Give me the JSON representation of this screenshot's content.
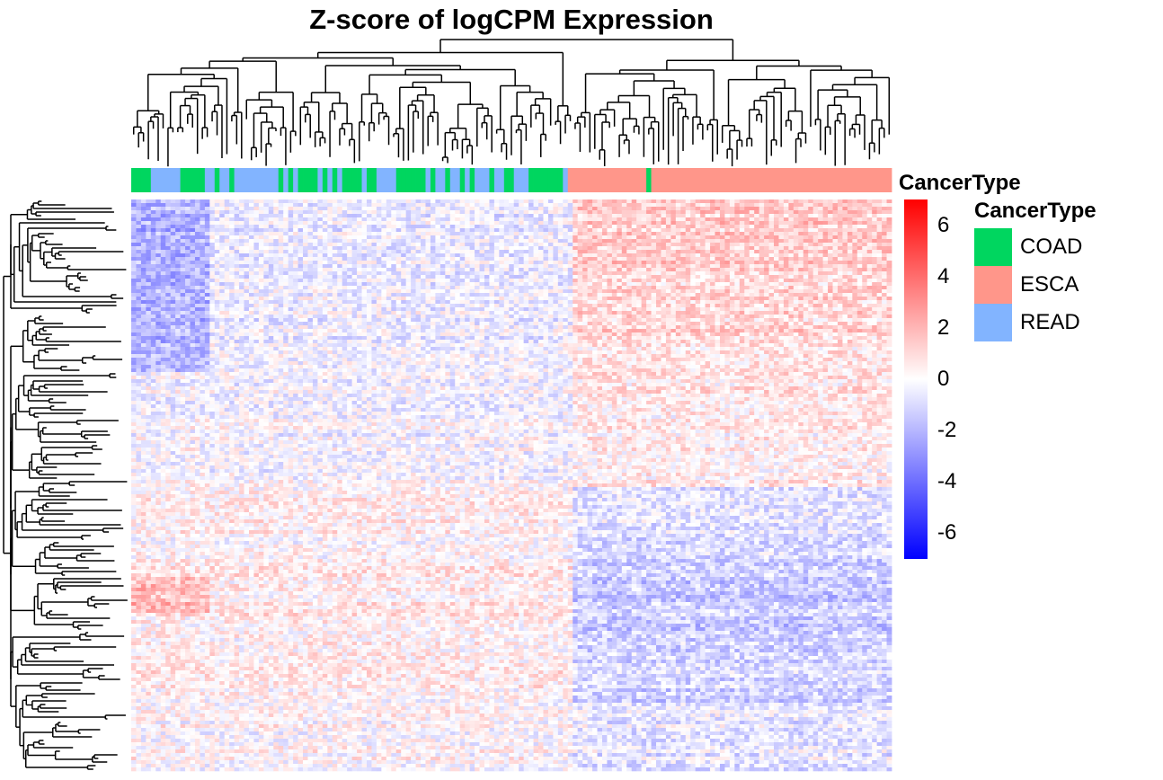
{
  "chart_data": {
    "type": "heatmap",
    "title": "Z-score of logCPM Expression",
    "annotation": {
      "label": "CancerType",
      "legend_title": "CancerType",
      "levels": [
        {
          "name": "COAD",
          "color": "#00d65f"
        },
        {
          "name": "ESCA",
          "color": "#ff968a"
        },
        {
          "name": "READ",
          "color": "#82b4ff"
        }
      ],
      "column_order": [
        "COAD",
        "COAD",
        "COAD",
        "COAD",
        "READ",
        "READ",
        "READ",
        "READ",
        "READ",
        "READ",
        "COAD",
        "COAD",
        "COAD",
        "COAD",
        "COAD",
        "READ",
        "READ",
        "COAD",
        "READ",
        "READ",
        "COAD",
        "READ",
        "READ",
        "READ",
        "READ",
        "READ",
        "READ",
        "READ",
        "READ",
        "READ",
        "COAD",
        "READ",
        "COAD",
        "READ",
        "COAD",
        "COAD",
        "COAD",
        "COAD",
        "READ",
        "COAD",
        "READ",
        "COAD",
        "READ",
        "COAD",
        "COAD",
        "COAD",
        "COAD",
        "READ",
        "COAD",
        "COAD",
        "READ",
        "READ",
        "READ",
        "READ",
        "COAD",
        "COAD",
        "COAD",
        "COAD",
        "COAD",
        "COAD",
        "READ",
        "COAD",
        "READ",
        "READ",
        "COAD",
        "READ",
        "READ",
        "COAD",
        "READ",
        "COAD",
        "READ",
        "READ",
        "READ",
        "COAD",
        "READ",
        "READ",
        "COAD",
        "COAD",
        "READ",
        "READ",
        "READ",
        "COAD",
        "COAD",
        "COAD",
        "COAD",
        "COAD",
        "COAD",
        "COAD",
        "READ",
        "ESCA",
        "ESCA",
        "ESCA",
        "ESCA",
        "ESCA",
        "ESCA",
        "ESCA",
        "ESCA",
        "ESCA",
        "ESCA",
        "ESCA",
        "ESCA",
        "ESCA",
        "ESCA",
        "ESCA",
        "ESCA",
        "COAD",
        "ESCA",
        "ESCA",
        "ESCA",
        "ESCA",
        "ESCA",
        "ESCA",
        "ESCA",
        "ESCA",
        "ESCA",
        "ESCA",
        "ESCA",
        "ESCA",
        "ESCA",
        "ESCA",
        "ESCA",
        "ESCA",
        "ESCA",
        "ESCA",
        "ESCA",
        "ESCA",
        "ESCA",
        "ESCA",
        "ESCA",
        "ESCA",
        "ESCA",
        "ESCA",
        "ESCA",
        "ESCA",
        "ESCA",
        "ESCA",
        "ESCA",
        "ESCA",
        "ESCA",
        "ESCA",
        "ESCA",
        "ESCA",
        "ESCA",
        "ESCA",
        "ESCA",
        "ESCA",
        "ESCA",
        "ESCA",
        "ESCA",
        "ESCA",
        "ESCA",
        "ESCA",
        "ESCA",
        "ESCA",
        "ESCA"
      ]
    },
    "color_scale": {
      "min": -7,
      "max": 7,
      "mid": 0,
      "colors": {
        "low": "#0000ff",
        "mid": "#ffffff",
        "high": "#ff0000"
      },
      "ticks": [
        6,
        4,
        2,
        0,
        -2,
        -4,
        -6
      ]
    },
    "dendrograms": {
      "columns": true,
      "rows": true
    },
    "legend_position": "right"
  }
}
